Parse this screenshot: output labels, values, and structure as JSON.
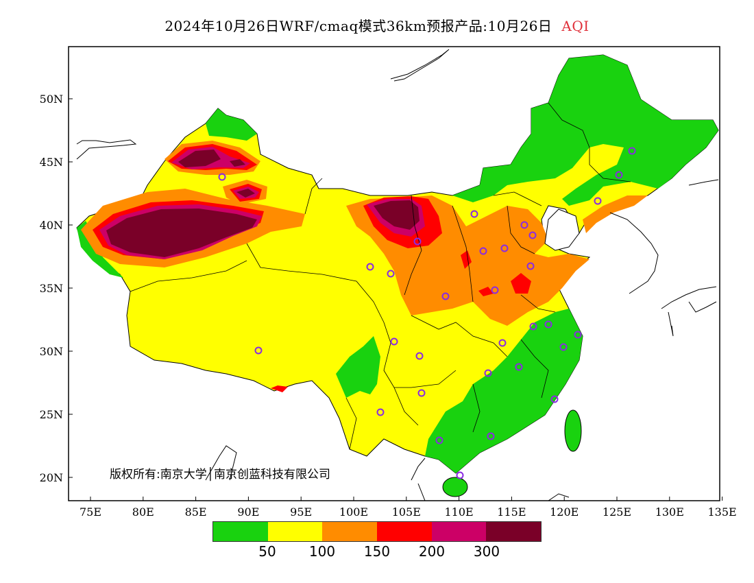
{
  "title": {
    "main": "2024年10月26日WRF/cmaq模式36km预报产品:10月26日",
    "variable": "AQI"
  },
  "copyright": "版权所有:南京大学│南京创蓝科技有限公司",
  "axes": {
    "y_ticks": [
      "50N",
      "45N",
      "40N",
      "35N",
      "30N",
      "25N",
      "20N"
    ],
    "x_ticks": [
      "75E",
      "80E",
      "85E",
      "90E",
      "95E",
      "100E",
      "105E",
      "110E",
      "115E",
      "120E",
      "125E",
      "130E",
      "135E"
    ]
  },
  "legend": {
    "colors": [
      "#19d20f",
      "#ffff00",
      "#ff8c00",
      "#ff0000",
      "#cc0066",
      "#7a0028"
    ],
    "labels": [
      "50",
      "100",
      "150",
      "200",
      "300"
    ]
  },
  "colors": {
    "good": "#19d20f",
    "moderate": "#ffff00",
    "usg": "#ff8c00",
    "unhealthy": "#ff0000",
    "very_unhealthy": "#cc0066",
    "hazardous": "#7a0028",
    "city_marker": "#8a2be2"
  },
  "cities_count_note": ""
}
